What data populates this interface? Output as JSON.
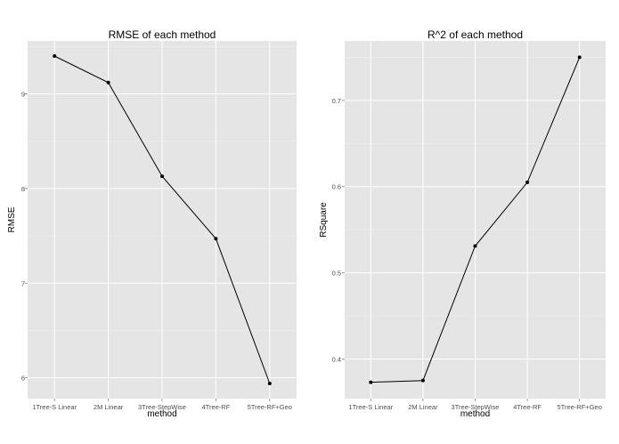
{
  "chart_data": [
    {
      "type": "line",
      "title": "RMSE of each method",
      "xlabel": "method",
      "ylabel": "RMSE",
      "categories": [
        "1Tree-S Linear",
        "2M Linear",
        "3Tree-StepWise",
        "4Tree-RF",
        "5Tree-RF+Geo"
      ],
      "values": [
        9.4,
        9.12,
        8.13,
        7.47,
        5.94
      ],
      "yticks": [
        6,
        7,
        8,
        9
      ],
      "ylim": [
        5.78,
        9.56
      ],
      "grid": true,
      "colors": {
        "panel": "#e5e5e5",
        "line": "#000000"
      }
    },
    {
      "type": "line",
      "title": "R^2 of each method",
      "xlabel": "method",
      "ylabel": "RSquare",
      "categories": [
        "1Tree-S Linear",
        "2M Linear",
        "3Tree-StepWise",
        "4Tree-RF",
        "5Tree-RF+Geo"
      ],
      "values": [
        0.373,
        0.375,
        0.531,
        0.605,
        0.75
      ],
      "yticks": [
        0.4,
        0.5,
        0.6,
        0.7
      ],
      "ylim": [
        0.354,
        0.769
      ],
      "grid": true,
      "colors": {
        "panel": "#e5e5e5",
        "line": "#000000"
      }
    }
  ]
}
